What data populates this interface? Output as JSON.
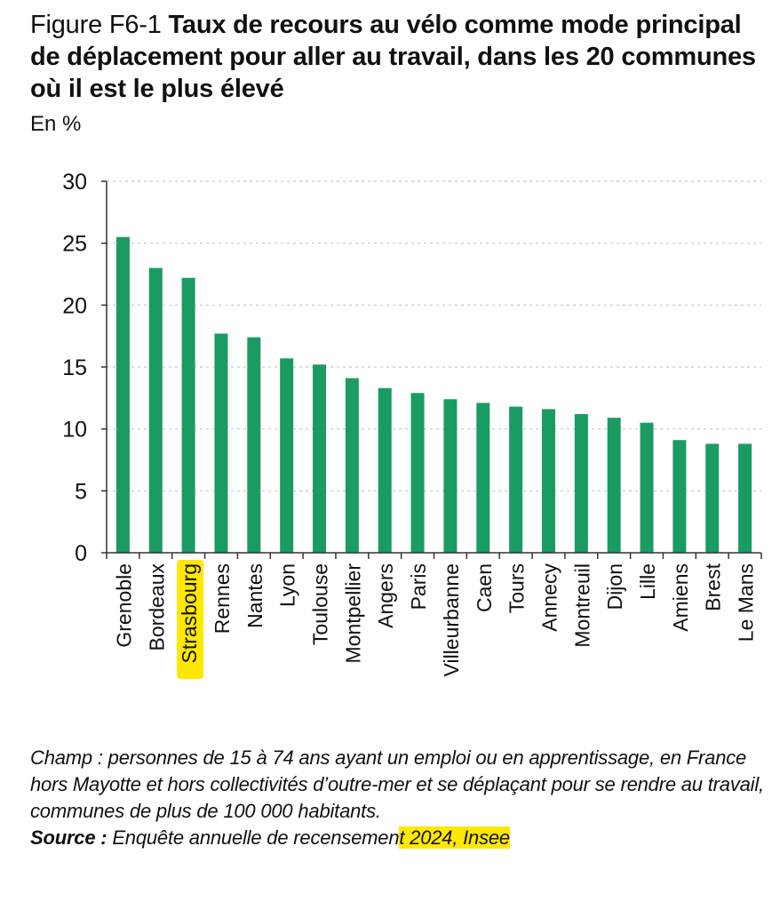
{
  "header": {
    "figure_prefix": "Figure F6-1 ",
    "title": "Taux de recours au vélo comme mode principal de déplacement pour aller au travail, dans les 20 communes où il est le plus élevé",
    "unit": "En %"
  },
  "colors": {
    "bar": "#1a9b61",
    "highlight": "#ffe800",
    "axis": "#333333",
    "grid": "#c8c8c8"
  },
  "chart_data": {
    "type": "bar",
    "title": "Taux de recours au vélo comme mode principal de déplacement pour aller au travail, dans les 20 communes où il est le plus élevé",
    "xlabel": "",
    "ylabel": "En %",
    "ylim": [
      0,
      30
    ],
    "yticks": [
      0,
      5,
      10,
      15,
      20,
      25,
      30
    ],
    "grid": true,
    "gridstyle": "dotted horizontal",
    "highlighted_category": "Strasbourg",
    "categories": [
      "Grenoble",
      "Bordeaux",
      "Strasbourg",
      "Rennes",
      "Nantes",
      "Lyon",
      "Toulouse",
      "Montpellier",
      "Angers",
      "Paris",
      "Villeurbanne",
      "Caen",
      "Tours",
      "Annecy",
      "Montreuil",
      "Dijon",
      "Lille",
      "Amiens",
      "Brest",
      "Le Mans"
    ],
    "values": [
      25.5,
      23.0,
      22.2,
      17.7,
      17.4,
      15.7,
      15.2,
      14.1,
      13.3,
      12.9,
      12.4,
      12.1,
      11.8,
      11.6,
      11.2,
      10.9,
      10.5,
      9.1,
      8.8,
      8.8
    ]
  },
  "footnote": {
    "champ": "Champ : personnes de 15 à 74 ans ayant un emploi ou en apprentissage, en France hors Mayotte et hors collectivités d’outre-mer et se déplaçant pour se rendre au travail, communes de plus de 100 000 habitants.",
    "source_label": "Source :",
    "source_text": " Enquête annuelle de recensemen",
    "source_highlighted": "t 2024, Insee"
  }
}
